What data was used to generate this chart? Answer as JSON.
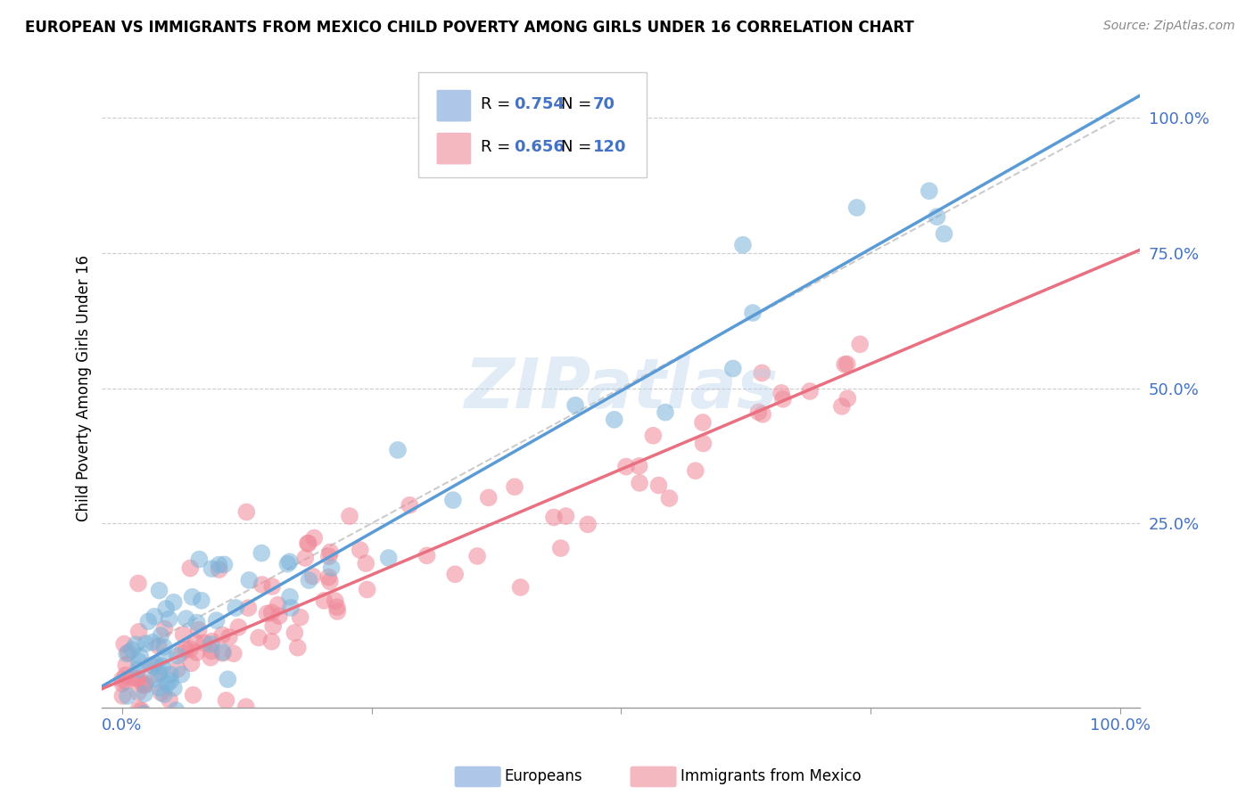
{
  "title": "EUROPEAN VS IMMIGRANTS FROM MEXICO CHILD POVERTY AMONG GIRLS UNDER 16 CORRELATION CHART",
  "source": "Source: ZipAtlas.com",
  "ylabel": "Child Poverty Among Girls Under 16",
  "blue_color": "#7ab3d9",
  "pink_color": "#f08898",
  "blue_line_color": "#5b9bd5",
  "pink_line_color": "#e87080",
  "watermark_color": "#b8d0ea",
  "blue_R": 0.754,
  "pink_R": 0.656,
  "blue_N": 70,
  "pink_N": 120,
  "blue_line_slope": 1.05,
  "blue_line_intercept": -0.03,
  "pink_line_slope": 0.78,
  "pink_line_intercept": -0.04
}
